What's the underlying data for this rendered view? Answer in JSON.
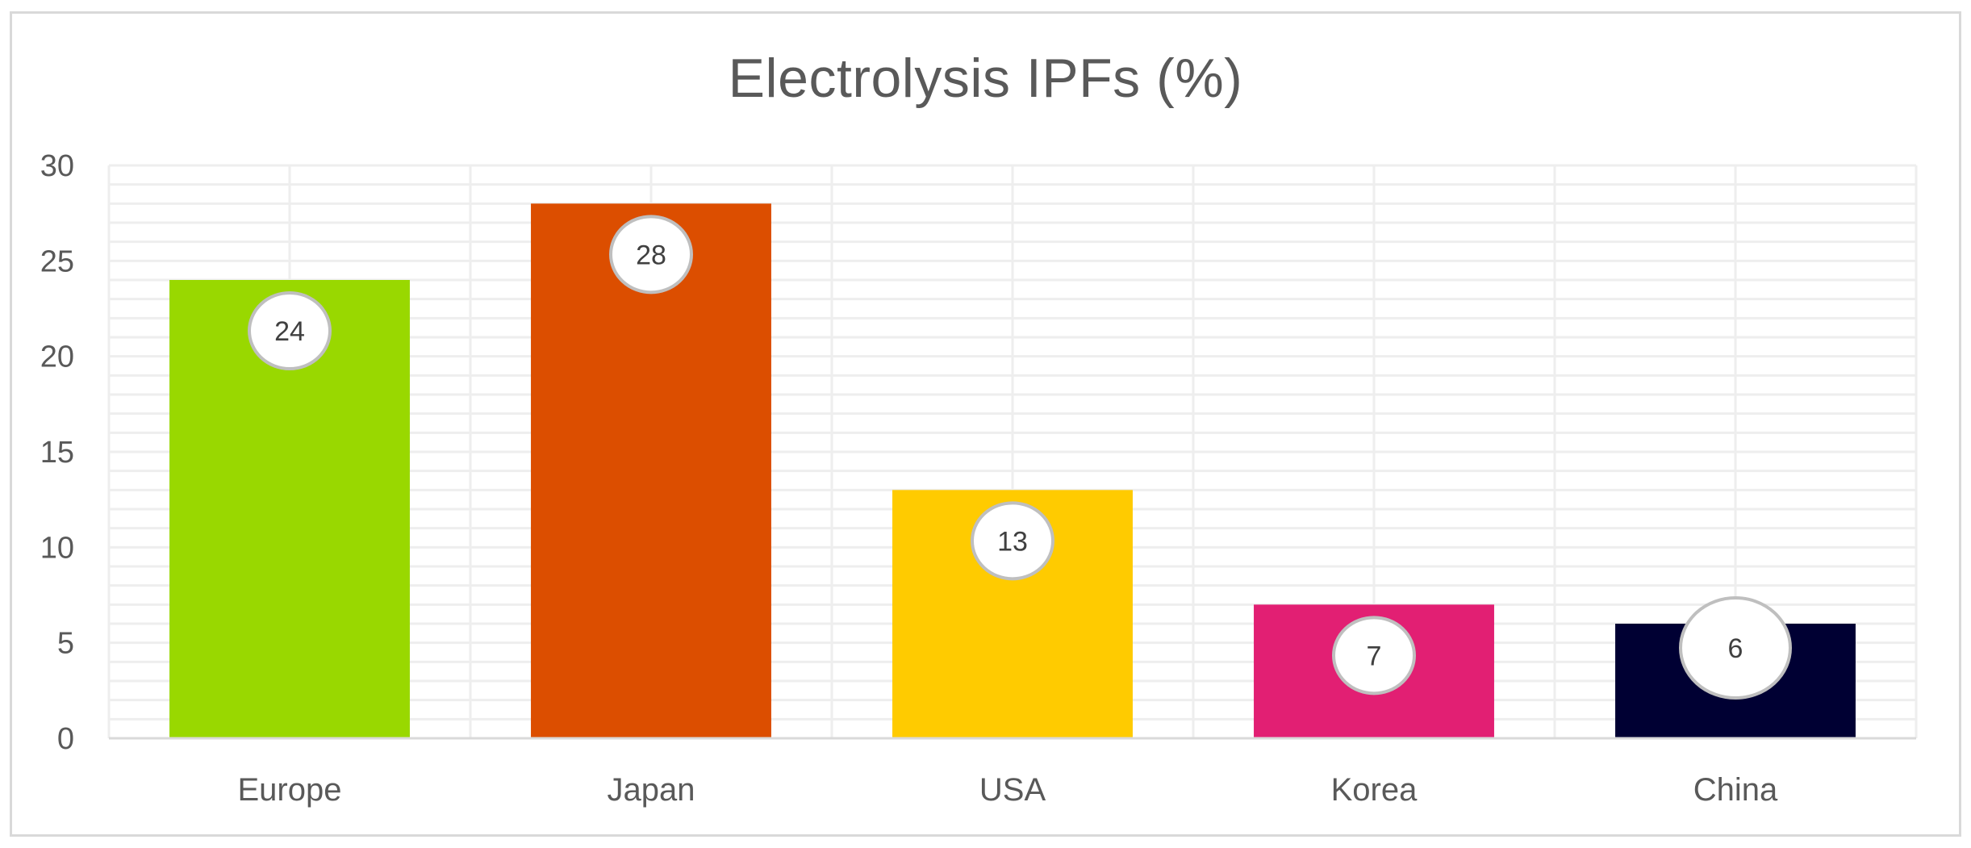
{
  "chart_data": {
    "type": "bar",
    "title": "Electrolysis IPFs (%)",
    "xlabel": "",
    "ylabel": "",
    "categories": [
      "Europe",
      "Japan",
      "USA",
      "Korea",
      "China"
    ],
    "values": [
      24,
      28,
      13,
      7,
      6
    ],
    "data_labels": [
      "24",
      "28",
      "13",
      "7",
      "6"
    ],
    "colors": [
      "#99d800",
      "#dc4e00",
      "#ffcb00",
      "#e21f73",
      "#000033"
    ],
    "ylim": [
      0,
      30
    ],
    "yticks": [
      0,
      5,
      10,
      15,
      20,
      25,
      30
    ],
    "ytick_labels": [
      "0",
      "5",
      "10",
      "15",
      "20",
      "25",
      "30"
    ],
    "grid": true,
    "legend": "none"
  }
}
